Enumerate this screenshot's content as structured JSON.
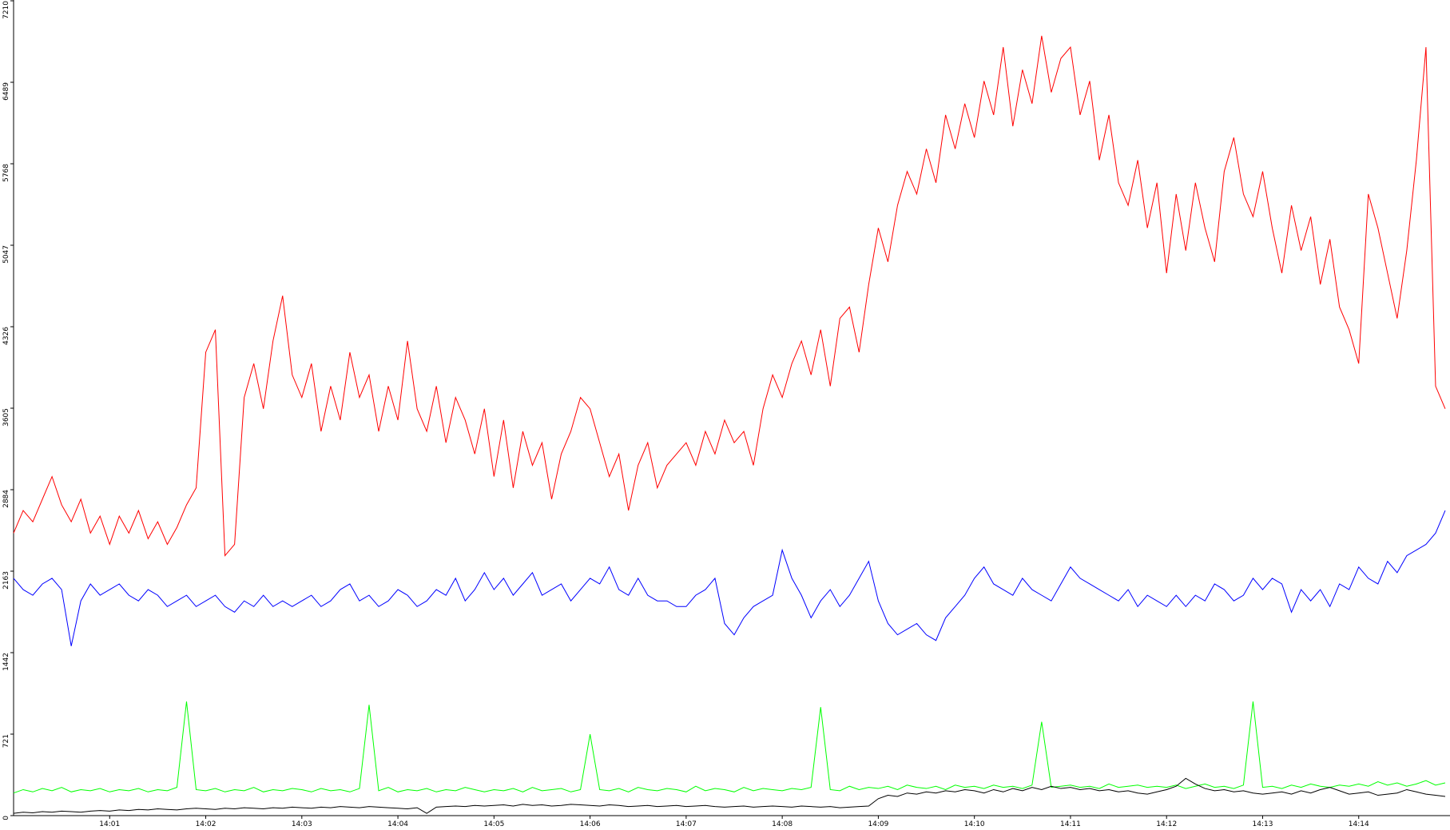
{
  "chart_data": {
    "type": "line",
    "xlim": [
      0,
      14.95
    ],
    "ylim": [
      0,
      7210
    ],
    "yticks": [
      0,
      721,
      1442,
      2163,
      2884,
      3605,
      4326,
      5047,
      5768,
      6489,
      7210
    ],
    "xticks": [
      {
        "value": 1,
        "label": "14:01"
      },
      {
        "value": 2,
        "label": "14:02"
      },
      {
        "value": 3,
        "label": "14:03"
      },
      {
        "value": 4,
        "label": "14:04"
      },
      {
        "value": 5,
        "label": "14:05"
      },
      {
        "value": 6,
        "label": "14:06"
      },
      {
        "value": 7,
        "label": "14:07"
      },
      {
        "value": 8,
        "label": "14:08"
      },
      {
        "value": 9,
        "label": "14:09"
      },
      {
        "value": 10,
        "label": "14:10"
      },
      {
        "value": 11,
        "label": "14:11"
      },
      {
        "value": 12,
        "label": "14:12"
      },
      {
        "value": 13,
        "label": "14:13"
      },
      {
        "value": 14,
        "label": "14:14"
      }
    ],
    "x": [
      0,
      0.1,
      0.2,
      0.3,
      0.4,
      0.5,
      0.6,
      0.7,
      0.8,
      0.9,
      1,
      1.1,
      1.2,
      1.3,
      1.4,
      1.5,
      1.6,
      1.7,
      1.8,
      1.9,
      2,
      2.1,
      2.2,
      2.3,
      2.4,
      2.5,
      2.6,
      2.7,
      2.8,
      2.9,
      3,
      3.1,
      3.2,
      3.3,
      3.4,
      3.5,
      3.6,
      3.7,
      3.8,
      3.9,
      4,
      4.1,
      4.2,
      4.3,
      4.4,
      4.5,
      4.6,
      4.7,
      4.8,
      4.9,
      5,
      5.1,
      5.2,
      5.3,
      5.4,
      5.5,
      5.6,
      5.7,
      5.8,
      5.9,
      6,
      6.1,
      6.2,
      6.3,
      6.4,
      6.5,
      6.6,
      6.7,
      6.8,
      6.9,
      7,
      7.1,
      7.2,
      7.3,
      7.4,
      7.5,
      7.6,
      7.7,
      7.8,
      7.9,
      8,
      8.1,
      8.2,
      8.3,
      8.4,
      8.5,
      8.6,
      8.7,
      8.8,
      8.9,
      9,
      9.1,
      9.2,
      9.3,
      9.4,
      9.5,
      9.6,
      9.7,
      9.8,
      9.9,
      10,
      10.1,
      10.2,
      10.3,
      10.4,
      10.5,
      10.6,
      10.7,
      10.8,
      10.9,
      11,
      11.1,
      11.2,
      11.3,
      11.4,
      11.5,
      11.6,
      11.7,
      11.8,
      11.9,
      12,
      12.1,
      12.2,
      12.3,
      12.4,
      12.5,
      12.6,
      12.7,
      12.8,
      12.9,
      13,
      13.1,
      13.2,
      13.3,
      13.4,
      13.5,
      13.6,
      13.7,
      13.8,
      13.9,
      14,
      14.1,
      14.2,
      14.3,
      14.4,
      14.5,
      14.6,
      14.7,
      14.8,
      14.9
    ],
    "series": [
      {
        "color": "#ff0000",
        "values": [
          2500,
          2700,
          2600,
          2800,
          3000,
          2750,
          2600,
          2800,
          2500,
          2650,
          2400,
          2650,
          2500,
          2700,
          2450,
          2600,
          2400,
          2550,
          2750,
          2900,
          4100,
          4300,
          2300,
          2400,
          3700,
          4000,
          3600,
          4200,
          4600,
          3900,
          3700,
          4000,
          3400,
          3800,
          3500,
          4100,
          3700,
          3900,
          3400,
          3800,
          3500,
          4200,
          3600,
          3400,
          3800,
          3300,
          3700,
          3500,
          3200,
          3600,
          3000,
          3500,
          2900,
          3400,
          3100,
          3300,
          2800,
          3200,
          3400,
          3700,
          3600,
          3300,
          3000,
          3200,
          2700,
          3100,
          3300,
          2900,
          3100,
          3200,
          3300,
          3100,
          3400,
          3200,
          3500,
          3300,
          3400,
          3100,
          3600,
          3900,
          3700,
          4000,
          4200,
          3900,
          4300,
          3800,
          4400,
          4500,
          4100,
          4700,
          5200,
          4900,
          5400,
          5700,
          5500,
          5900,
          5600,
          6200,
          5900,
          6300,
          6000,
          6500,
          6200,
          6800,
          6100,
          6600,
          6300,
          6900,
          6400,
          6700,
          6800,
          6200,
          6500,
          5800,
          6200,
          5600,
          5400,
          5800,
          5200,
          5600,
          4800,
          5500,
          5000,
          5600,
          5200,
          4900,
          5700,
          6000,
          5500,
          5300,
          5700,
          5200,
          4800,
          5400,
          5000,
          5300,
          4700,
          5100,
          4500,
          4300,
          4000,
          5500,
          5200,
          4800,
          4400,
          5000,
          5800,
          6800,
          3800,
          3600
        ]
      },
      {
        "color": "#0000ff",
        "values": [
          2100,
          2000,
          1950,
          2050,
          2100,
          2000,
          1500,
          1900,
          2050,
          1950,
          2000,
          2050,
          1950,
          1900,
          2000,
          1950,
          1850,
          1900,
          1950,
          1850,
          1900,
          1950,
          1850,
          1800,
          1900,
          1850,
          1950,
          1850,
          1900,
          1850,
          1900,
          1950,
          1850,
          1900,
          2000,
          2050,
          1900,
          1950,
          1850,
          1900,
          2000,
          1950,
          1850,
          1900,
          2000,
          1950,
          2100,
          1900,
          2000,
          2150,
          2000,
          2100,
          1950,
          2050,
          2150,
          1950,
          2000,
          2050,
          1900,
          2000,
          2100,
          2050,
          2200,
          2000,
          1950,
          2100,
          1950,
          1900,
          1900,
          1850,
          1850,
          1950,
          2000,
          2100,
          1700,
          1600,
          1750,
          1850,
          1900,
          1950,
          2350,
          2100,
          1950,
          1750,
          1900,
          2000,
          1850,
          1950,
          2100,
          2250,
          1900,
          1700,
          1600,
          1650,
          1700,
          1600,
          1550,
          1750,
          1850,
          1950,
          2100,
          2200,
          2050,
          2000,
          1950,
          2100,
          2000,
          1950,
          1900,
          2050,
          2200,
          2100,
          2050,
          2000,
          1950,
          1900,
          2000,
          1850,
          1950,
          1900,
          1850,
          1950,
          1850,
          1950,
          1900,
          2050,
          2000,
          1900,
          1950,
          2100,
          2000,
          2100,
          2050,
          1800,
          2000,
          1900,
          2000,
          1850,
          2050,
          2000,
          2200,
          2100,
          2050,
          2250,
          2150,
          2300,
          2350,
          2400,
          2500,
          2700
        ]
      },
      {
        "color": "#00ff00",
        "values": [
          200,
          230,
          210,
          240,
          220,
          250,
          210,
          230,
          220,
          240,
          210,
          230,
          220,
          240,
          210,
          230,
          220,
          250,
          1010,
          230,
          220,
          240,
          210,
          230,
          220,
          250,
          210,
          230,
          220,
          240,
          230,
          210,
          240,
          220,
          230,
          210,
          240,
          980,
          220,
          250,
          210,
          230,
          220,
          240,
          210,
          230,
          220,
          250,
          230,
          210,
          230,
          220,
          240,
          210,
          250,
          220,
          230,
          240,
          210,
          230,
          720,
          230,
          220,
          240,
          210,
          250,
          230,
          220,
          240,
          230,
          210,
          260,
          220,
          240,
          230,
          210,
          250,
          220,
          240,
          230,
          220,
          240,
          230,
          250,
          960,
          230,
          220,
          260,
          230,
          250,
          240,
          260,
          230,
          270,
          250,
          240,
          260,
          230,
          270,
          250,
          260,
          240,
          270,
          250,
          260,
          240,
          270,
          830,
          250,
          260,
          270,
          250,
          260,
          240,
          280,
          250,
          260,
          270,
          250,
          260,
          250,
          270,
          240,
          260,
          280,
          250,
          260,
          240,
          270,
          1010,
          250,
          260,
          240,
          270,
          250,
          280,
          260,
          250,
          270,
          260,
          280,
          260,
          300,
          270,
          290,
          260,
          280,
          310,
          270,
          290
        ]
      },
      {
        "color": "#000000",
        "values": [
          20,
          30,
          25,
          35,
          30,
          40,
          35,
          30,
          40,
          45,
          40,
          50,
          45,
          55,
          50,
          60,
          55,
          50,
          60,
          65,
          60,
          55,
          65,
          60,
          70,
          65,
          60,
          70,
          65,
          75,
          70,
          65,
          75,
          70,
          80,
          75,
          70,
          80,
          75,
          70,
          65,
          60,
          70,
          20,
          75,
          80,
          85,
          80,
          90,
          85,
          90,
          95,
          85,
          100,
          90,
          95,
          85,
          90,
          100,
          95,
          90,
          85,
          95,
          90,
          80,
          85,
          90,
          80,
          85,
          90,
          80,
          85,
          90,
          80,
          75,
          80,
          85,
          75,
          80,
          85,
          80,
          75,
          85,
          80,
          75,
          80,
          70,
          75,
          80,
          85,
          150,
          180,
          170,
          200,
          190,
          210,
          200,
          220,
          210,
          230,
          220,
          200,
          230,
          210,
          240,
          220,
          250,
          230,
          260,
          240,
          250,
          230,
          240,
          220,
          230,
          210,
          220,
          200,
          190,
          210,
          230,
          260,
          330,
          280,
          240,
          220,
          230,
          210,
          220,
          200,
          190,
          200,
          210,
          190,
          220,
          200,
          230,
          250,
          220,
          190,
          200,
          210,
          180,
          190,
          200,
          230,
          210,
          190,
          180,
          170
        ]
      }
    ]
  }
}
